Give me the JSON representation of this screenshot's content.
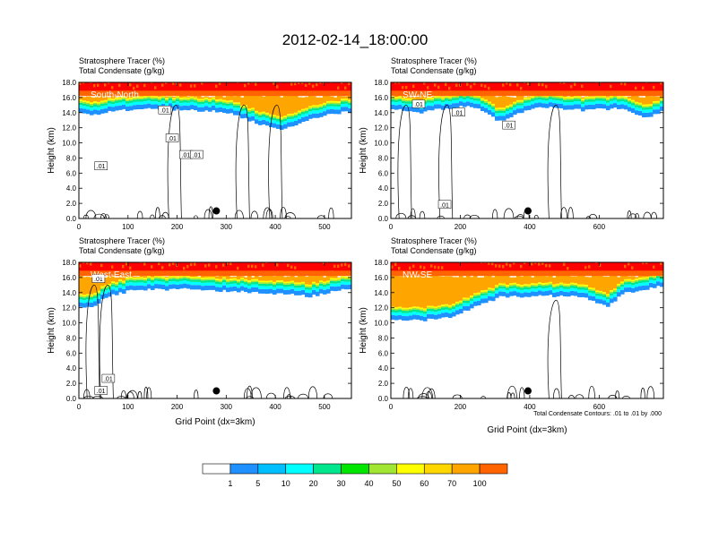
{
  "figure": {
    "title": "2012-02-14_18:00:00",
    "footnote": "Total Condensate Contours: .01 to .01 by .000"
  },
  "colors": {
    "levels": [
      "#ffffff",
      "#1e90ff",
      "#00bfff",
      "#00ffff",
      "#00e68c",
      "#00e600",
      "#a0e632",
      "#ffff00",
      "#ffd700",
      "#ffa500",
      "#ff6400",
      "#ff0000"
    ]
  },
  "chart_data": [
    {
      "type": "contour",
      "panel": "South-North",
      "title_line1": "Stratosphere Tracer   (%)",
      "title_line2": "Total Condensate   (g/kg)",
      "label": "South-North",
      "xlabel": "",
      "ylabel": "Height (km)",
      "xlim": [
        0,
        555
      ],
      "ylim": [
        0,
        18
      ],
      "xticks": [
        0,
        100,
        200,
        300,
        400,
        500
      ],
      "yticks": [
        0.0,
        2.0,
        4.0,
        6.0,
        8.0,
        10.0,
        12.0,
        14.0,
        16.0,
        18.0
      ],
      "contour_labels": [
        {
          "text": ".01",
          "x": 45,
          "y": 6.9
        },
        {
          "text": ".01",
          "x": 175,
          "y": 14.3
        },
        {
          "text": ".01",
          "x": 190,
          "y": 10.6
        },
        {
          "text": ".01",
          "x": 218,
          "y": 8.4
        },
        {
          "text": ".01",
          "x": 240,
          "y": 8.4
        }
      ],
      "marker": {
        "x": 280,
        "y": 1.0
      }
    },
    {
      "type": "contour",
      "panel": "SW-NE",
      "title_line1": "Stratosphere Tracer   (%)",
      "title_line2": "Total Condensate   (g/kg)",
      "label": "SW-NE",
      "xlabel": "",
      "ylabel": "Height (km)",
      "xlim": [
        0,
        785
      ],
      "ylim": [
        0,
        18
      ],
      "xticks": [
        0,
        200,
        400,
        600
      ],
      "yticks": [
        0.0,
        2.0,
        4.0,
        6.0,
        8.0,
        10.0,
        12.0,
        14.0,
        16.0,
        18.0
      ],
      "contour_labels": [
        {
          "text": ".01",
          "x": 80,
          "y": 15.1
        },
        {
          "text": ".01",
          "x": 195,
          "y": 14.0
        },
        {
          "text": ".01",
          "x": 340,
          "y": 12.3
        },
        {
          "text": ".01",
          "x": 155,
          "y": 1.8
        }
      ],
      "marker": {
        "x": 395,
        "y": 1.0
      }
    },
    {
      "type": "contour",
      "panel": "West-East",
      "title_line1": "Stratosphere Tracer   (%)",
      "title_line2": "Total Condensate   (g/kg)",
      "label": "West-East",
      "xlabel": "Grid Point (dx=3km)",
      "ylabel": "Height (km)",
      "xlim": [
        0,
        555
      ],
      "ylim": [
        0,
        18
      ],
      "xticks": [
        0,
        100,
        200,
        300,
        400,
        500
      ],
      "yticks": [
        0.0,
        2.0,
        4.0,
        6.0,
        8.0,
        10.0,
        12.0,
        14.0,
        16.0,
        18.0
      ],
      "contour_labels": [
        {
          "text": ".01",
          "x": 40,
          "y": 15.8
        },
        {
          "text": ".01",
          "x": 45,
          "y": 1.0
        },
        {
          "text": ".01",
          "x": 60,
          "y": 2.6
        }
      ],
      "marker": {
        "x": 280,
        "y": 1.0
      }
    },
    {
      "type": "contour",
      "panel": "NW-SE",
      "title_line1": "Stratosphere Tracer   (%)",
      "title_line2": "Total Condensate   (g/kg)",
      "label": "NW-SE",
      "xlabel": "Grid Point (dx=3km)",
      "ylabel": "Height (km)",
      "xlim": [
        0,
        785
      ],
      "ylim": [
        0,
        18
      ],
      "xticks": [
        0,
        200,
        400,
        600
      ],
      "yticks": [
        0.0,
        2.0,
        4.0,
        6.0,
        8.0,
        10.0,
        12.0,
        14.0,
        16.0,
        18.0
      ],
      "contour_labels": [],
      "marker": {
        "x": 395,
        "y": 1.0
      }
    }
  ],
  "colorbar": {
    "labels": [
      "1",
      "5",
      "10",
      "20",
      "30",
      "40",
      "50",
      "60",
      "70",
      "100"
    ]
  }
}
